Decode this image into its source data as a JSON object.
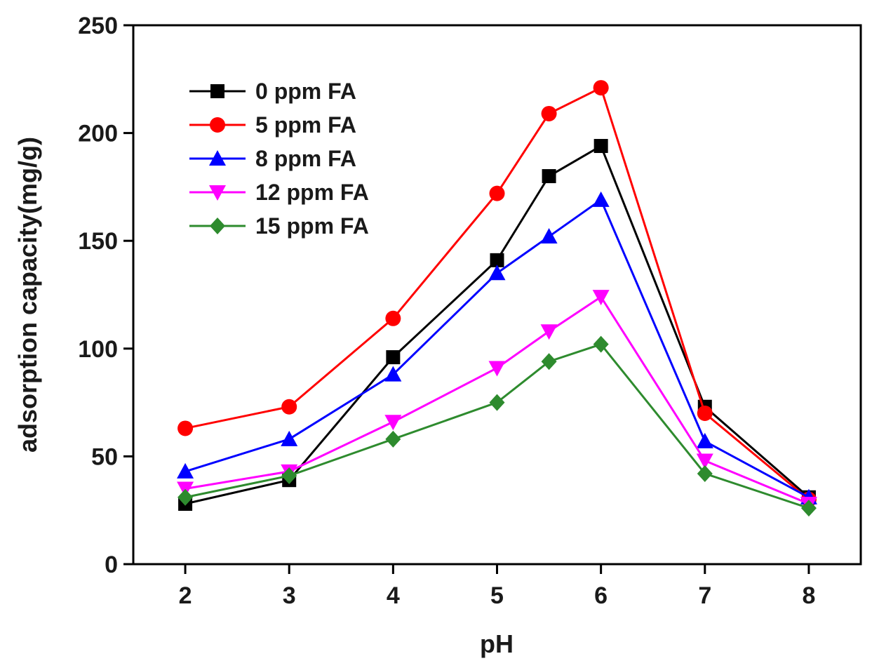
{
  "chart_data": {
    "type": "line",
    "title": "",
    "xlabel": "pH",
    "ylabel": "adsorption capacity(mg/g)",
    "x_ticks": [
      2,
      3,
      4,
      5,
      6,
      7,
      8
    ],
    "x_tick_labels": [
      "2",
      "3",
      "4",
      "5",
      "6",
      "7",
      "8"
    ],
    "y_ticks": [
      0,
      50,
      100,
      150,
      200,
      250
    ],
    "y_tick_labels": [
      "0",
      "50",
      "100",
      "150",
      "200",
      "250"
    ],
    "xlim": [
      1.5,
      8.5
    ],
    "ylim": [
      0,
      250
    ],
    "legend_position": "top-left",
    "x": [
      2,
      3,
      4,
      5,
      5.5,
      6,
      7,
      8
    ],
    "series": [
      {
        "name": "0 ppm FA",
        "color": "#000000",
        "marker": "square",
        "values": [
          28,
          39,
          96,
          141,
          180,
          194,
          73,
          31
        ]
      },
      {
        "name": "5 ppm FA",
        "color": "#ff0000",
        "marker": "circle",
        "values": [
          63,
          73,
          114,
          172,
          209,
          221,
          70,
          30
        ]
      },
      {
        "name": "8 ppm FA",
        "color": "#0000ff",
        "marker": "triangle-up",
        "values": [
          43,
          58,
          88,
          135,
          152,
          169,
          57,
          31
        ]
      },
      {
        "name": "12 ppm FA",
        "color": "#ff00ff",
        "marker": "triangle-down",
        "values": [
          35,
          43,
          66,
          91,
          108,
          124,
          48,
          28
        ]
      },
      {
        "name": "15 ppm FA",
        "color": "#2e8b2e",
        "marker": "diamond",
        "values": [
          31,
          41,
          58,
          75,
          94,
          102,
          42,
          26
        ]
      }
    ]
  }
}
